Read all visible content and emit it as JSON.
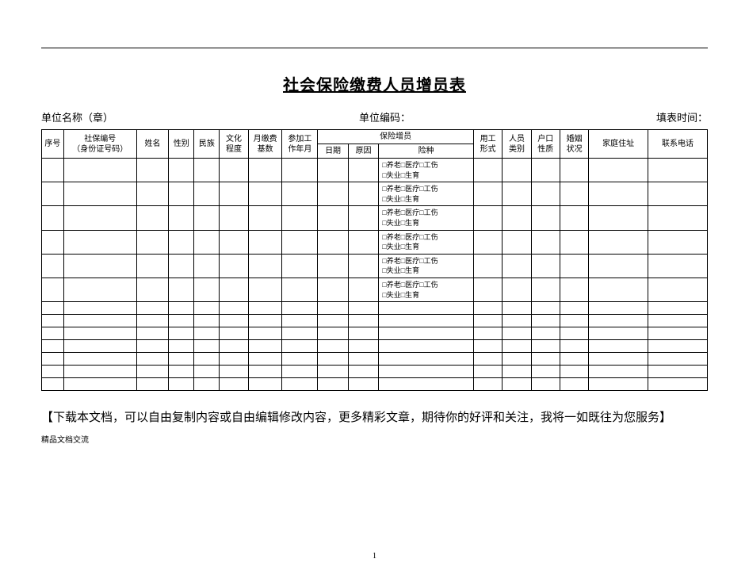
{
  "title": "社会保险缴费人员增员表",
  "meta": {
    "org_label": "单位名称（章）",
    "code_label": "单位编码：",
    "date_label": "填表时间："
  },
  "columns": {
    "seq": "序号",
    "sid": "社保编号\n（身份证号码）",
    "name": "姓名",
    "sex": "性别",
    "ethnic": "民族",
    "edu": "文化\n程度",
    "base": "月缴费\n基数",
    "workdate": "参加工\n作年月",
    "increase_group": "保险增员",
    "inc_date": "日期",
    "inc_reason": "原因",
    "inc_type": "险种",
    "employ": "用工\n形式",
    "category": "人员\n类别",
    "hukou": "户口\n性质",
    "marriage": "婚姻\n状况",
    "addr": "家庭住址",
    "phone": "联系电话"
  },
  "col_widths": {
    "seq": 26,
    "sid": 86,
    "name": 38,
    "sex": 30,
    "ethnic": 30,
    "edu": 34,
    "base": 40,
    "workdate": 42,
    "inc_date": 36,
    "inc_reason": 36,
    "inc_type": 112,
    "employ": 34,
    "category": 34,
    "hukou": 34,
    "marriage": 34,
    "addr": 70,
    "phone": 70
  },
  "insurance_line1": "□养老□医疗□工伤",
  "insurance_line2": "□失业□生育",
  "filled_rows": 6,
  "empty_rows": 7,
  "footer_note": "【下载本文档，可以自由复制内容或自由编辑修改内容，更多精彩文章，期待你的好评和关注，我将一如既往为您服务】",
  "footer_small": "精品文档交流",
  "page_number": "1"
}
